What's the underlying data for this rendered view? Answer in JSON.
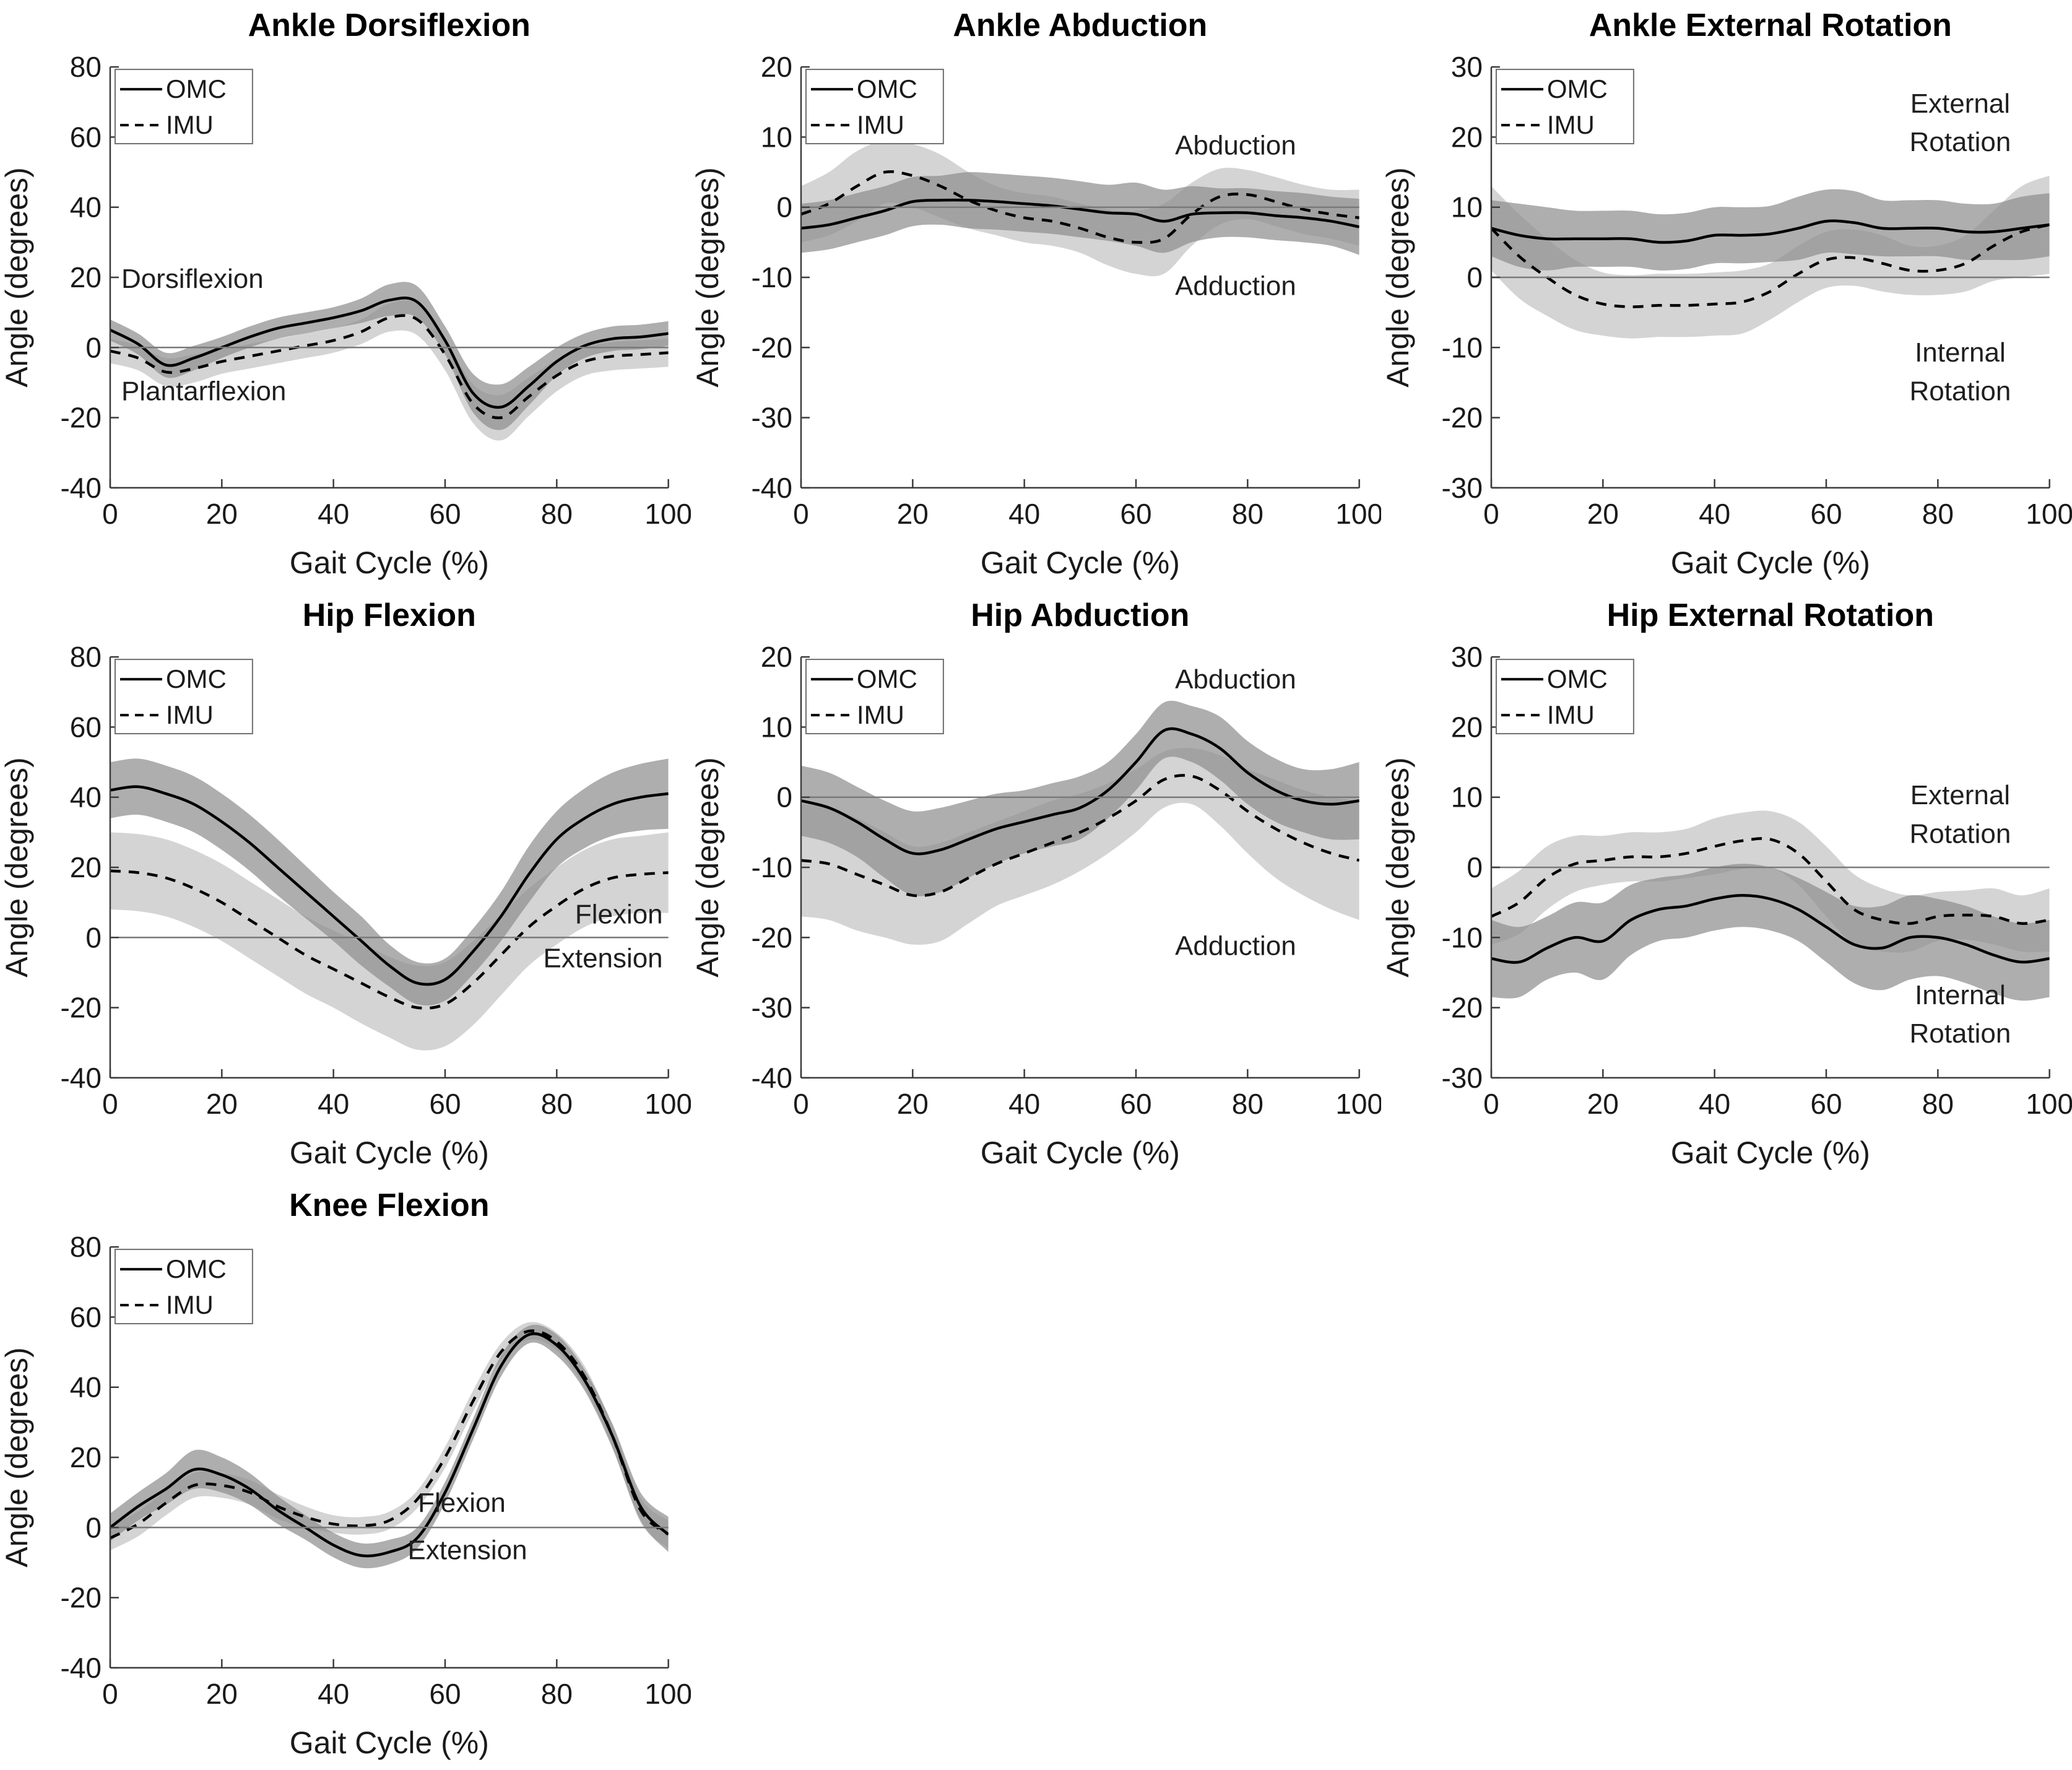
{
  "figure": {
    "background": "#ffffff",
    "line_color": "#000000",
    "axis_color": "#3d3d3d",
    "zero_line_color": "#7a7a7a",
    "omc_band_color": "#8f8f8f",
    "imu_band_color": "#c9c9c9",
    "xlabel": "Gait Cycle (%)",
    "ylabel": "Angle (degrees)",
    "legend": [
      "OMC",
      "IMU"
    ],
    "x_samples": [
      0,
      5,
      10,
      15,
      20,
      25,
      30,
      35,
      40,
      45,
      50,
      55,
      60,
      65,
      70,
      75,
      80,
      85,
      90,
      95,
      100
    ]
  },
  "chart_data": [
    {
      "id": "ankle-dorsiflexion",
      "type": "line",
      "title": "Ankle Dorsiflexion",
      "xlabel": "Gait Cycle (%)",
      "ylabel": "Angle (degrees)",
      "xlim": [
        0,
        100
      ],
      "ylim": [
        -40,
        80
      ],
      "xticks": [
        0,
        20,
        40,
        60,
        80,
        100
      ],
      "yticks": [
        80,
        60,
        40,
        20,
        0,
        -20,
        -40
      ],
      "zero_line": true,
      "legend": [
        "OMC",
        "IMU"
      ],
      "annotations": [
        {
          "text": "Dorsiflexion",
          "x": 2,
          "y": 17,
          "anchor": "start"
        },
        {
          "text": "Plantarflexion",
          "x": 2,
          "y": -15,
          "anchor": "start"
        }
      ],
      "series": [
        {
          "name": "OMC",
          "style": "solid",
          "band_color": "#8f8f8f",
          "y": [
            5,
            1,
            -5,
            -3,
            0,
            3,
            5.5,
            7,
            8.5,
            10.5,
            13.5,
            13,
            2,
            -13,
            -17,
            -11,
            -4,
            0.5,
            2.5,
            3,
            4
          ],
          "sd": [
            3,
            3,
            3.5,
            3.5,
            3,
            3,
            3,
            3,
            3,
            3.5,
            4.5,
            4.5,
            4,
            5.5,
            6.5,
            5.5,
            4,
            3.5,
            3.5,
            3.5,
            3.5
          ]
        },
        {
          "name": "IMU",
          "style": "dashed",
          "band_color": "#c9c9c9",
          "y": [
            -1,
            -3,
            -7,
            -6,
            -4,
            -2.5,
            -1,
            0.5,
            2,
            4.5,
            8.5,
            8,
            -2,
            -16,
            -20,
            -14,
            -8,
            -4,
            -2.5,
            -2,
            -1.5
          ],
          "sd": [
            3.5,
            3.5,
            4,
            4,
            3.5,
            3.5,
            3.5,
            3.5,
            3.5,
            3.5,
            4,
            4.5,
            4.5,
            5.5,
            6.5,
            5.5,
            4.5,
            4,
            4,
            4,
            4
          ]
        }
      ]
    },
    {
      "id": "ankle-abduction",
      "type": "line",
      "title": "Ankle Abduction",
      "xlabel": "Gait Cycle (%)",
      "ylabel": "Angle (degrees)",
      "xlim": [
        0,
        100
      ],
      "ylim": [
        -40,
        20
      ],
      "xticks": [
        0,
        20,
        40,
        60,
        80,
        100
      ],
      "yticks": [
        20,
        10,
        0,
        -10,
        -20,
        -30,
        -40
      ],
      "zero_line": true,
      "legend": [
        "OMC",
        "IMU"
      ],
      "annotations": [
        {
          "text": "Abduction",
          "x": 67,
          "y": 7.5,
          "anchor": "start"
        },
        {
          "text": "Adduction",
          "x": 67,
          "y": -12.5,
          "anchor": "start"
        }
      ],
      "series": [
        {
          "name": "OMC",
          "style": "solid",
          "band_color": "#8f8f8f",
          "y": [
            -3,
            -2.5,
            -1.5,
            -0.5,
            0.8,
            1,
            1,
            0.8,
            0.5,
            0.2,
            -0.3,
            -0.8,
            -1,
            -2,
            -1,
            -0.8,
            -0.8,
            -1.2,
            -1.5,
            -2,
            -2.8
          ],
          "sd": [
            3.5,
            3.5,
            3.5,
            3.5,
            3.5,
            3.5,
            4,
            4,
            4,
            4,
            4,
            4,
            4.5,
            4.5,
            4,
            3.5,
            3.5,
            3.5,
            3.5,
            3.5,
            4
          ]
        },
        {
          "name": "IMU",
          "style": "dashed",
          "band_color": "#c9c9c9",
          "y": [
            -1,
            0.5,
            3,
            5,
            4.5,
            3,
            1,
            -0.5,
            -1.5,
            -2,
            -3,
            -4.3,
            -5,
            -4.5,
            -1,
            1.5,
            1.8,
            0.8,
            -0.3,
            -1,
            -1.5
          ],
          "sd": [
            4,
            4.5,
            5,
            4.5,
            4.5,
            4.5,
            4,
            3.5,
            3.5,
            3.5,
            3.5,
            4,
            4.5,
            5,
            4.5,
            4,
            3.5,
            3.5,
            3.5,
            3.5,
            4
          ]
        }
      ]
    },
    {
      "id": "ankle-external-rotation",
      "type": "line",
      "title": "Ankle External Rotation",
      "xlabel": "Gait Cycle (%)",
      "ylabel": "Angle (degrees)",
      "xlim": [
        0,
        100
      ],
      "ylim": [
        -30,
        30
      ],
      "xticks": [
        0,
        20,
        40,
        60,
        80,
        100
      ],
      "yticks": [
        30,
        20,
        10,
        0,
        -10,
        -20,
        -30
      ],
      "zero_line": true,
      "legend": [
        "OMC",
        "IMU"
      ],
      "annotations": [
        {
          "text": "External",
          "x": 84,
          "y": 23.5,
          "anchor": "middle"
        },
        {
          "text": "Rotation",
          "x": 84,
          "y": 18,
          "anchor": "middle"
        },
        {
          "text": "Internal",
          "x": 84,
          "y": -12,
          "anchor": "middle"
        },
        {
          "text": "Rotation",
          "x": 84,
          "y": -17.5,
          "anchor": "middle"
        }
      ],
      "series": [
        {
          "name": "OMC",
          "style": "solid",
          "band_color": "#8f8f8f",
          "y": [
            7,
            6,
            5.5,
            5.5,
            5.5,
            5.5,
            5,
            5.2,
            6,
            6,
            6.2,
            7,
            8,
            7.8,
            7,
            7,
            7,
            6.5,
            6.5,
            7,
            7.5
          ],
          "sd": [
            4,
            4.5,
            4.5,
            4,
            4,
            4,
            4,
            4,
            4,
            4,
            4,
            4.5,
            4.5,
            4.5,
            4,
            4,
            4,
            4,
            4,
            4.5,
            4.5
          ]
        },
        {
          "name": "IMU",
          "style": "dashed",
          "band_color": "#c9c9c9",
          "y": [
            7,
            3,
            0,
            -2.5,
            -3.8,
            -4.2,
            -4,
            -4,
            -3.8,
            -3.5,
            -2,
            0.5,
            2.5,
            2.8,
            2,
            1,
            1,
            2,
            4.5,
            6.5,
            7.5
          ],
          "sd": [
            6,
            6,
            5.5,
            5,
            4.5,
            4.5,
            4.5,
            4.5,
            4.5,
            4.5,
            4,
            4,
            4,
            4,
            4,
            3.5,
            3.5,
            4,
            5,
            6.5,
            7
          ]
        }
      ]
    },
    {
      "id": "hip-flexion",
      "type": "line",
      "title": "Hip Flexion",
      "xlabel": "Gait Cycle (%)",
      "ylabel": "Angle (degrees)",
      "xlim": [
        0,
        100
      ],
      "ylim": [
        -40,
        80
      ],
      "xticks": [
        0,
        20,
        40,
        60,
        80,
        100
      ],
      "yticks": [
        80,
        60,
        40,
        20,
        0,
        -20,
        -40
      ],
      "zero_line": true,
      "legend": [
        "OMC",
        "IMU"
      ],
      "annotations": [
        {
          "text": "Flexion",
          "x": 99,
          "y": 4,
          "anchor": "end"
        },
        {
          "text": "Extension",
          "x": 99,
          "y": -8.5,
          "anchor": "end"
        }
      ],
      "series": [
        {
          "name": "OMC",
          "style": "solid",
          "band_color": "#8f8f8f",
          "y": [
            42,
            43,
            41,
            38,
            33,
            27,
            20,
            13,
            6,
            -1,
            -8,
            -13,
            -12,
            -4,
            6,
            18,
            28,
            34,
            38,
            40,
            41
          ],
          "sd": [
            8,
            8,
            8,
            8,
            8,
            8,
            8,
            7.5,
            7,
            7,
            6,
            6,
            6,
            6.5,
            7,
            8,
            8,
            8.5,
            9,
            9.5,
            10
          ]
        },
        {
          "name": "IMU",
          "style": "dashed",
          "band_color": "#c9c9c9",
          "y": [
            19,
            18.5,
            17,
            14,
            10,
            5,
            0,
            -5,
            -9,
            -13,
            -17,
            -20,
            -19,
            -13,
            -5,
            3,
            9,
            14,
            17,
            18,
            18.5
          ],
          "sd": [
            11,
            11,
            11,
            11,
            11,
            11,
            11,
            11,
            11,
            11.5,
            11.5,
            12,
            12,
            12,
            11.5,
            11,
            11,
            11,
            11,
            11,
            11.5
          ]
        }
      ]
    },
    {
      "id": "hip-abduction",
      "type": "line",
      "title": "Hip Abduction",
      "xlabel": "Gait Cycle (%)",
      "ylabel": "Angle (degrees)",
      "xlim": [
        0,
        100
      ],
      "ylim": [
        -40,
        20
      ],
      "xticks": [
        0,
        20,
        40,
        60,
        80,
        100
      ],
      "yticks": [
        20,
        10,
        0,
        -10,
        -20,
        -30,
        -40
      ],
      "zero_line": true,
      "legend": [
        "OMC",
        "IMU"
      ],
      "annotations": [
        {
          "text": "Abduction",
          "x": 67,
          "y": 15.5,
          "anchor": "start"
        },
        {
          "text": "Adduction",
          "x": 67,
          "y": -22.5,
          "anchor": "start"
        }
      ],
      "series": [
        {
          "name": "OMC",
          "style": "solid",
          "band_color": "#8f8f8f",
          "y": [
            -0.5,
            -1.5,
            -3.5,
            -6,
            -8,
            -7.5,
            -6,
            -4.5,
            -3.5,
            -2.5,
            -1.5,
            1,
            5,
            9.5,
            9,
            7,
            3.5,
            1,
            -0.5,
            -1,
            -0.5
          ],
          "sd": [
            5,
            5,
            5,
            5.5,
            6,
            6,
            5.5,
            5,
            4.5,
            4.5,
            4.5,
            4,
            4,
            4,
            4,
            4.5,
            4.5,
            4.5,
            4.5,
            5,
            5.5
          ]
        },
        {
          "name": "IMU",
          "style": "dashed",
          "band_color": "#c9c9c9",
          "y": [
            -9,
            -9.5,
            -11,
            -12.5,
            -14,
            -13.5,
            -11.5,
            -9.5,
            -8,
            -6.5,
            -5,
            -3,
            -0.5,
            2.5,
            3,
            1,
            -2,
            -4.5,
            -6.5,
            -8,
            -9
          ],
          "sd": [
            8,
            8,
            8,
            7.5,
            7,
            7,
            6.5,
            6,
            6,
            6,
            5.5,
            5,
            4.5,
            4,
            4,
            5,
            6,
            7,
            7.5,
            8,
            8.5
          ]
        }
      ]
    },
    {
      "id": "hip-external-rotation",
      "type": "line",
      "title": "Hip External Rotation",
      "xlabel": "Gait Cycle (%)",
      "ylabel": "Angle (degrees)",
      "xlim": [
        0,
        100
      ],
      "ylim": [
        -30,
        30
      ],
      "xticks": [
        0,
        20,
        40,
        60,
        80,
        100
      ],
      "yticks": [
        30,
        20,
        10,
        0,
        -10,
        -20,
        -30
      ],
      "zero_line": true,
      "legend": [
        "OMC",
        "IMU"
      ],
      "annotations": [
        {
          "text": "External",
          "x": 84,
          "y": 9,
          "anchor": "middle"
        },
        {
          "text": "Rotation",
          "x": 84,
          "y": 3.5,
          "anchor": "middle"
        },
        {
          "text": "Internal",
          "x": 84,
          "y": -19.5,
          "anchor": "middle"
        },
        {
          "text": "Rotation",
          "x": 84,
          "y": -25,
          "anchor": "middle"
        }
      ],
      "series": [
        {
          "name": "OMC",
          "style": "solid",
          "band_color": "#8f8f8f",
          "y": [
            -13,
            -13.5,
            -11.5,
            -10,
            -10.5,
            -7.5,
            -6,
            -5.5,
            -4.5,
            -4,
            -4.5,
            -6,
            -8.5,
            -11,
            -11.5,
            -10,
            -10,
            -11,
            -12.5,
            -13.5,
            -13
          ],
          "sd": [
            5.5,
            5,
            4.5,
            5,
            5.5,
            5,
            4.5,
            4.5,
            4.5,
            4.5,
            4.5,
            4.5,
            5,
            5.5,
            6,
            6,
            5.5,
            5.5,
            5.5,
            5.5,
            5.5
          ]
        },
        {
          "name": "IMU",
          "style": "dashed",
          "band_color": "#c9c9c9",
          "y": [
            -7,
            -5,
            -1.5,
            0.5,
            1,
            1.5,
            1.5,
            2,
            3,
            3.8,
            4,
            2,
            -2,
            -6,
            -7.5,
            -8,
            -7,
            -6.8,
            -7,
            -8,
            -7.5
          ],
          "sd": [
            4,
            4.5,
            4.5,
            4,
            3.5,
            3.5,
            3.5,
            3.5,
            4,
            4,
            4,
            4.5,
            5,
            5,
            4.5,
            4,
            3.5,
            3.5,
            4,
            4,
            4.5
          ]
        }
      ]
    },
    {
      "id": "knee-flexion",
      "type": "line",
      "title": "Knee Flexion",
      "xlabel": "Gait Cycle (%)",
      "ylabel": "Angle (degrees)",
      "xlim": [
        0,
        100
      ],
      "ylim": [
        -40,
        80
      ],
      "xticks": [
        0,
        20,
        40,
        60,
        80,
        100
      ],
      "yticks": [
        80,
        60,
        40,
        20,
        0,
        -20,
        -40
      ],
      "zero_line": true,
      "legend": [
        "OMC",
        "IMU"
      ],
      "annotations": [
        {
          "text": "Flexion",
          "x": 63,
          "y": 4.5,
          "anchor": "middle"
        },
        {
          "text": "Extension",
          "x": 64,
          "y": -9,
          "anchor": "middle"
        }
      ],
      "series": [
        {
          "name": "OMC",
          "style": "solid",
          "band_color": "#8f8f8f",
          "y": [
            0,
            6,
            11,
            16.5,
            15,
            11,
            5,
            0,
            -5,
            -8,
            -7,
            -3,
            10,
            28,
            46,
            55,
            52,
            42,
            26,
            6,
            -2
          ],
          "sd": [
            4,
            4,
            4.5,
            5.5,
            5,
            4.5,
            4,
            3.5,
            3.5,
            3.5,
            3.5,
            3,
            3,
            3,
            3,
            2.5,
            3,
            3,
            3.5,
            4,
            5
          ]
        },
        {
          "name": "IMU",
          "style": "dashed",
          "band_color": "#c9c9c9",
          "y": [
            -3,
            1,
            7,
            12,
            12,
            10,
            6,
            3,
            1,
            0.5,
            2,
            8,
            20,
            36,
            50,
            56,
            53,
            43,
            26,
            5,
            -2
          ],
          "sd": [
            3.5,
            3.5,
            3.5,
            3.5,
            3.5,
            3.5,
            3.5,
            3,
            2.5,
            2.5,
            2.5,
            2.5,
            3,
            3,
            2.5,
            2.5,
            2.5,
            3,
            3,
            3.5,
            4
          ]
        }
      ]
    }
  ]
}
